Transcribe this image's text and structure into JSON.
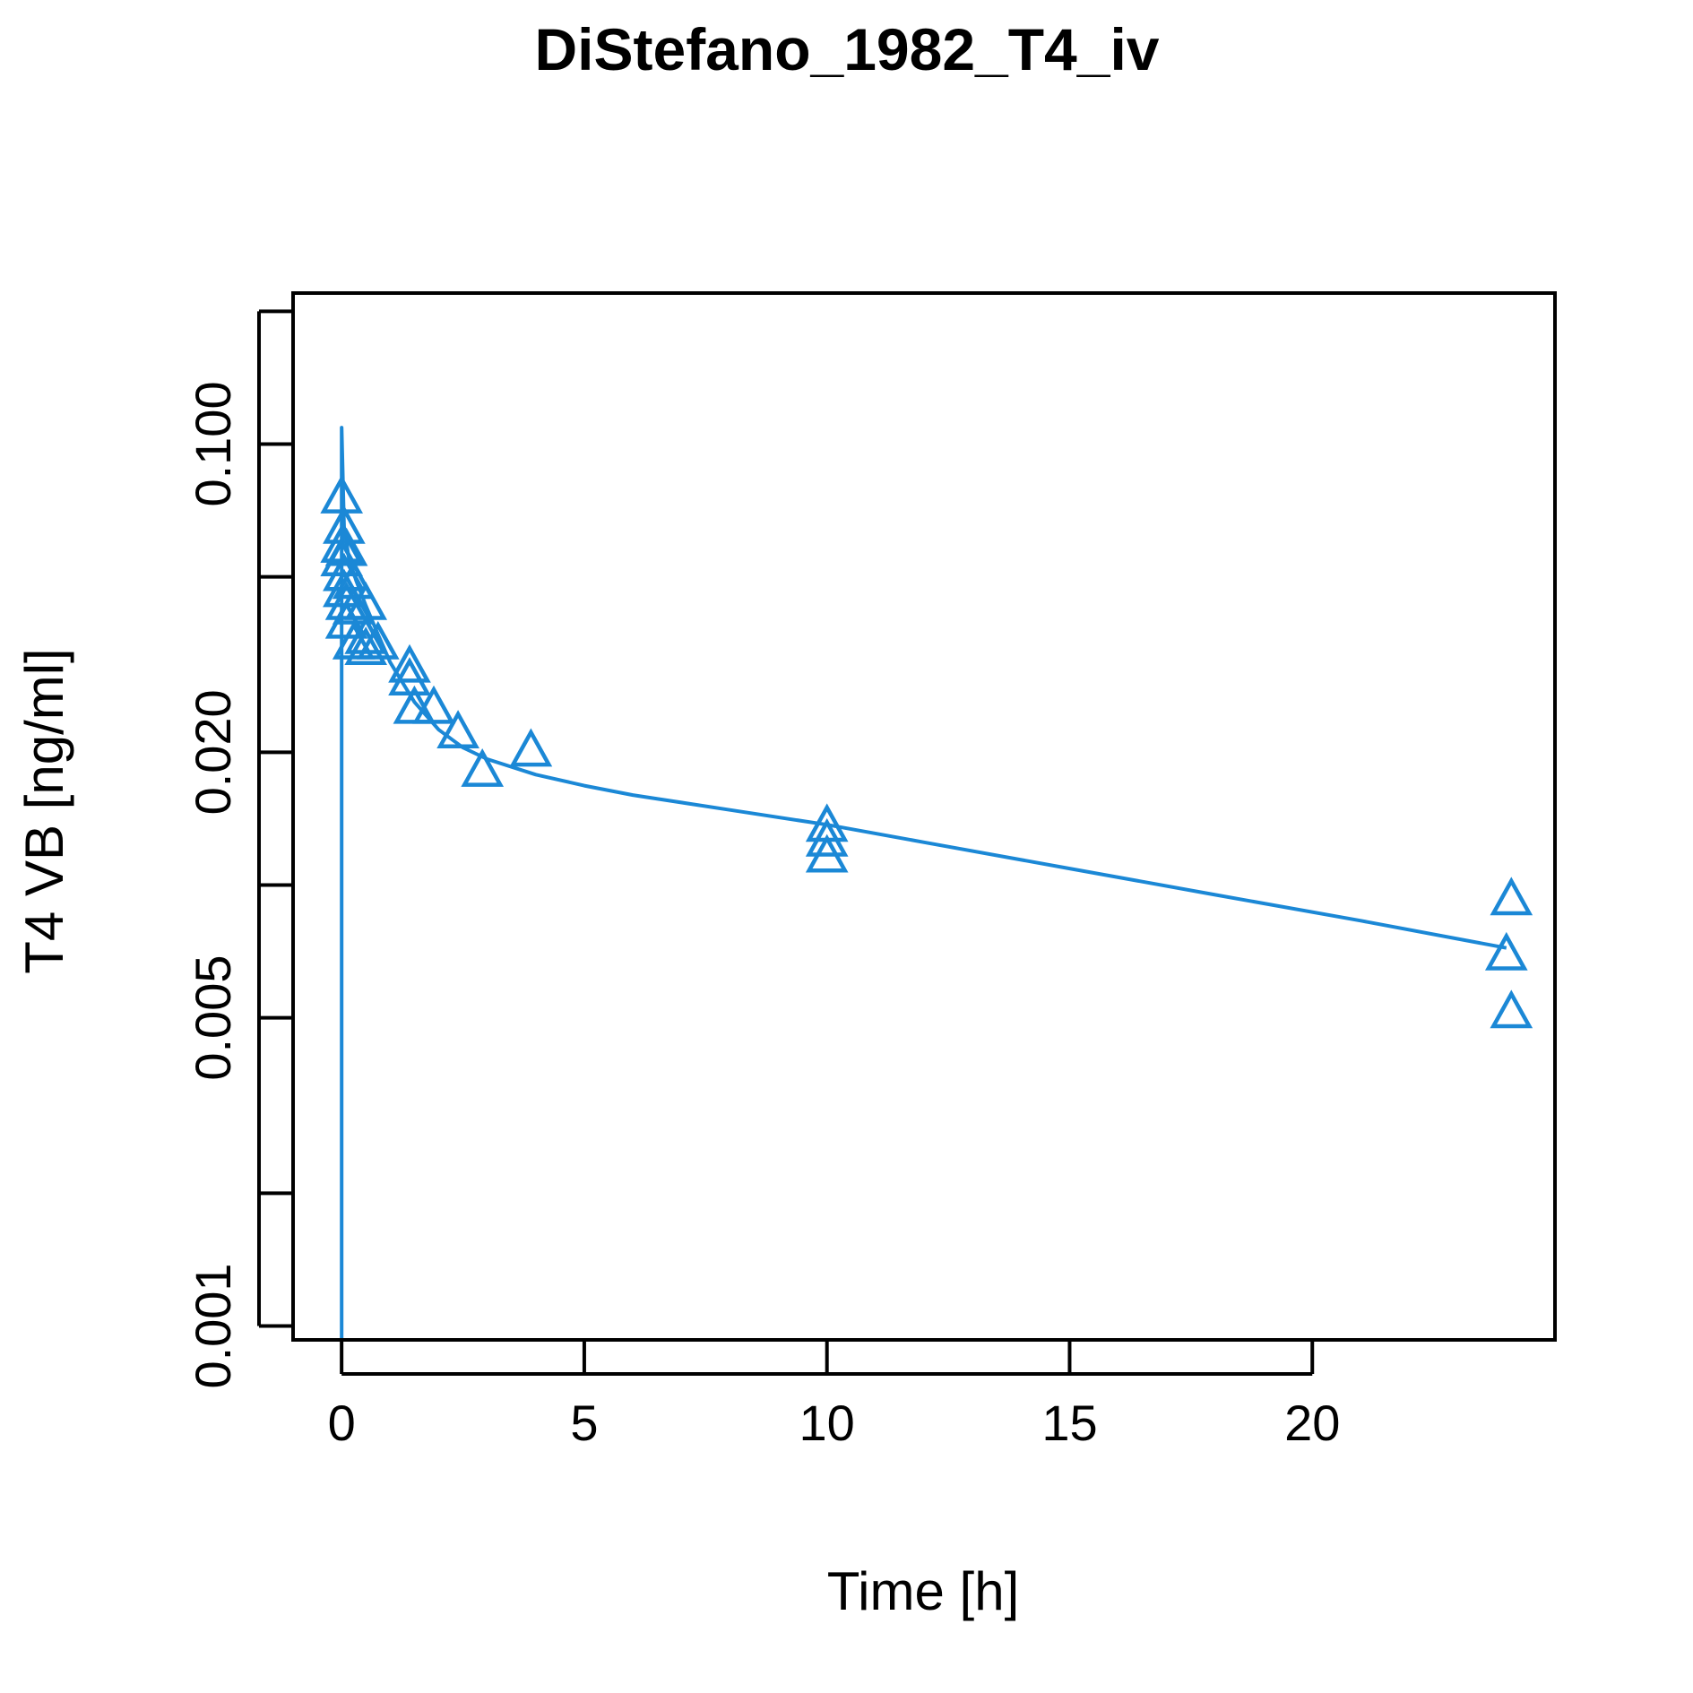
{
  "chart_data": {
    "type": "scatter",
    "title": "DiStefano_1982_T4_iv",
    "xlabel": "Time [h]",
    "ylabel": "T4 VB [ng/ml]",
    "x_scale": "linear",
    "y_scale": "log",
    "xlim": [
      -1,
      25
    ],
    "ylim": [
      0.00093,
      0.22
    ],
    "x_ticks": [
      {
        "value": 0,
        "label": "0"
      },
      {
        "value": 5,
        "label": "5"
      },
      {
        "value": 10,
        "label": "10"
      },
      {
        "value": 15,
        "label": "15"
      },
      {
        "value": 20,
        "label": "20"
      }
    ],
    "y_ticks": [
      {
        "value": 0.001,
        "label": "0.001"
      },
      {
        "value": 0.002,
        "label": ""
      },
      {
        "value": 0.005,
        "label": "0.005"
      },
      {
        "value": 0.01,
        "label": ""
      },
      {
        "value": 0.02,
        "label": "0.020"
      },
      {
        "value": 0.05,
        "label": ""
      },
      {
        "value": 0.1,
        "label": "0.100"
      },
      {
        "value": 0.2,
        "label": ""
      }
    ],
    "grid": false,
    "color": "#1b88d6",
    "series": [
      {
        "kind": "points",
        "marker": "triangle-open",
        "points": [
          {
            "x": 0.0,
            "y": 0.075
          },
          {
            "x": 0.0,
            "y": 0.058
          },
          {
            "x": 0.0,
            "y": 0.054
          },
          {
            "x": 0.05,
            "y": 0.064
          },
          {
            "x": 0.05,
            "y": 0.05
          },
          {
            "x": 0.05,
            "y": 0.046
          },
          {
            "x": 0.1,
            "y": 0.057
          },
          {
            "x": 0.1,
            "y": 0.043
          },
          {
            "x": 0.1,
            "y": 0.039
          },
          {
            "x": 0.25,
            "y": 0.048
          },
          {
            "x": 0.25,
            "y": 0.042
          },
          {
            "x": 0.25,
            "y": 0.035
          },
          {
            "x": 0.5,
            "y": 0.043
          },
          {
            "x": 0.5,
            "y": 0.036
          },
          {
            "x": 0.5,
            "y": 0.034
          },
          {
            "x": 0.75,
            "y": 0.035
          },
          {
            "x": 1.4,
            "y": 0.031
          },
          {
            "x": 1.4,
            "y": 0.029
          },
          {
            "x": 1.5,
            "y": 0.025
          },
          {
            "x": 1.9,
            "y": 0.025
          },
          {
            "x": 2.4,
            "y": 0.022
          },
          {
            "x": 2.9,
            "y": 0.018
          },
          {
            "x": 3.9,
            "y": 0.02
          },
          {
            "x": 10.0,
            "y": 0.0135
          },
          {
            "x": 10.0,
            "y": 0.0125
          },
          {
            "x": 10.0,
            "y": 0.0115
          },
          {
            "x": 24.1,
            "y": 0.0092
          },
          {
            "x": 24.0,
            "y": 0.0069
          },
          {
            "x": 24.1,
            "y": 0.0051
          }
        ]
      },
      {
        "kind": "line",
        "points": [
          {
            "x": 0.0,
            "y": 0.00093
          },
          {
            "x": 0.0,
            "y": 0.109
          },
          {
            "x": 0.05,
            "y": 0.065
          },
          {
            "x": 0.15,
            "y": 0.055
          },
          {
            "x": 0.3,
            "y": 0.049
          },
          {
            "x": 0.5,
            "y": 0.043
          },
          {
            "x": 0.75,
            "y": 0.037
          },
          {
            "x": 1.0,
            "y": 0.032
          },
          {
            "x": 1.5,
            "y": 0.026
          },
          {
            "x": 2.0,
            "y": 0.0225
          },
          {
            "x": 2.5,
            "y": 0.0205
          },
          {
            "x": 3.0,
            "y": 0.0193
          },
          {
            "x": 4.0,
            "y": 0.0178
          },
          {
            "x": 5.0,
            "y": 0.0168
          },
          {
            "x": 6.0,
            "y": 0.016
          },
          {
            "x": 8.0,
            "y": 0.0148
          },
          {
            "x": 10.0,
            "y": 0.0137
          },
          {
            "x": 12.0,
            "y": 0.0125
          },
          {
            "x": 15.0,
            "y": 0.0109
          },
          {
            "x": 18.0,
            "y": 0.0095
          },
          {
            "x": 21.0,
            "y": 0.0083
          },
          {
            "x": 24.0,
            "y": 0.0072
          }
        ]
      }
    ]
  }
}
